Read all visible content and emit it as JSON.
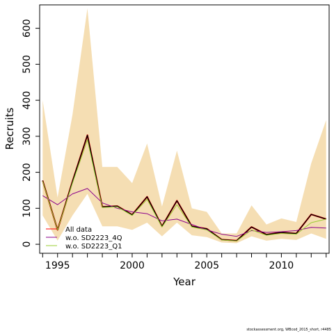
{
  "chart_data": {
    "type": "line",
    "xlabel": "Year",
    "ylabel": "Recruits",
    "xlim": [
      1993.8,
      2013.2
    ],
    "ylim": [
      -25,
      665
    ],
    "x_ticks": [
      1995,
      2000,
      2005,
      2010
    ],
    "y_ticks": [
      0,
      100,
      200,
      300,
      400,
      500,
      600
    ],
    "x": [
      1994,
      1995,
      1996,
      1997,
      1998,
      1999,
      2000,
      2001,
      2002,
      2003,
      2004,
      2005,
      2006,
      2007,
      2008,
      2009,
      2010,
      2011,
      2012,
      2013
    ],
    "band": {
      "color": "#f5deb3",
      "upper": [
        400,
        130,
        360,
        655,
        215,
        215,
        170,
        280,
        105,
        260,
        100,
        90,
        30,
        30,
        108,
        55,
        72,
        62,
        225,
        345
      ],
      "lower": [
        80,
        10,
        80,
        140,
        50,
        50,
        40,
        60,
        22,
        60,
        25,
        20,
        5,
        3,
        22,
        10,
        15,
        12,
        30,
        15
      ]
    },
    "series": [
      {
        "name": "All data",
        "color": "#ff0000",
        "width": 2.2,
        "values": [
          177,
          40,
          175,
          303,
          104,
          106,
          82,
          132,
          50,
          121,
          50,
          43,
          13,
          10,
          48,
          27,
          33,
          30,
          83,
          70
        ]
      },
      {
        "name": "",
        "color": "#000000",
        "width": 1.4,
        "values": [
          177,
          40,
          175,
          303,
          104,
          106,
          82,
          132,
          50,
          121,
          50,
          43,
          13,
          10,
          48,
          27,
          33,
          30,
          83,
          70
        ]
      },
      {
        "name": "w.o. SD2223_4Q",
        "color": "#8b008b",
        "width": 1,
        "values": [
          135,
          110,
          140,
          155,
          115,
          100,
          90,
          85,
          65,
          70,
          55,
          40,
          28,
          22,
          38,
          33,
          35,
          38,
          47,
          45
        ]
      },
      {
        "name": "w.o. SD2223_Q1",
        "color": "#9acd32",
        "width": 1,
        "values": [
          175,
          40,
          170,
          290,
          102,
          104,
          80,
          125,
          48,
          110,
          48,
          40,
          12,
          9,
          40,
          25,
          30,
          28,
          60,
          70
        ]
      }
    ],
    "legend_position": "bottom-left",
    "grid": false
  },
  "footer": "stockassessment.org, WBcod_2015_short, r4485"
}
